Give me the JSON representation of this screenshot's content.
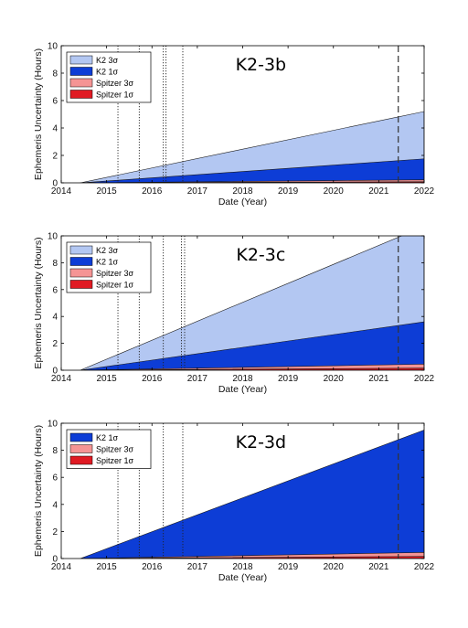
{
  "chart_data": [
    {
      "type": "area",
      "title": "K2-3b",
      "xlabel": "Date (Year)",
      "ylabel": "Ephemeris Uncertainty (Hours)",
      "xlim": [
        2014,
        2022
      ],
      "ylim": [
        0,
        10
      ],
      "xticks": [
        2014,
        2015,
        2016,
        2017,
        2018,
        2019,
        2020,
        2021,
        2022
      ],
      "yticks": [
        0,
        2,
        4,
        6,
        8,
        10
      ],
      "legend_position": "top-left",
      "start_year": 2014.42,
      "series": [
        {
          "name": "K2 3σ",
          "color": "#b3c7f2",
          "x": [
            2014.42,
            2022
          ],
          "values": [
            0,
            5.2
          ]
        },
        {
          "name": "K2 1σ",
          "color": "#0d3dd6",
          "x": [
            2014.42,
            2022
          ],
          "values": [
            0,
            1.75
          ]
        },
        {
          "name": "Spitzer 3σ",
          "color": "#f59494",
          "x": [
            2014.42,
            2022
          ],
          "values": [
            0,
            0.22
          ]
        },
        {
          "name": "Spitzer 1σ",
          "color": "#e01a23",
          "x": [
            2014.42,
            2022
          ],
          "values": [
            0,
            0.08
          ]
        }
      ],
      "dotted_lines": [
        2015.25,
        2015.72,
        2016.25,
        2016.31,
        2016.68
      ],
      "dashed_line": 2021.43
    },
    {
      "type": "area",
      "title": "K2-3c",
      "xlabel": "Date (Year)",
      "ylabel": "Ephemeris Uncertainty (Hours)",
      "xlim": [
        2014,
        2022
      ],
      "ylim": [
        0,
        10
      ],
      "xticks": [
        2014,
        2015,
        2016,
        2017,
        2018,
        2019,
        2020,
        2021,
        2022
      ],
      "yticks": [
        0,
        2,
        4,
        6,
        8,
        10
      ],
      "legend_position": "top-left",
      "start_year": 2014.42,
      "series": [
        {
          "name": "K2 3σ",
          "color": "#b3c7f2",
          "x": [
            2014.42,
            2022
          ],
          "values": [
            0,
            10.7
          ]
        },
        {
          "name": "K2 1σ",
          "color": "#0d3dd6",
          "x": [
            2014.42,
            2022
          ],
          "values": [
            0,
            3.6
          ]
        },
        {
          "name": "Spitzer 3σ",
          "color": "#f59494",
          "x": [
            2014.42,
            2022
          ],
          "values": [
            0,
            0.45
          ]
        },
        {
          "name": "Spitzer 1σ",
          "color": "#e01a23",
          "x": [
            2014.42,
            2022
          ],
          "values": [
            0,
            0.16
          ]
        }
      ],
      "dotted_lines": [
        2015.25,
        2015.72,
        2016.25,
        2016.65,
        2016.72
      ],
      "dashed_line": 2021.43
    },
    {
      "type": "area",
      "title": "K2-3d",
      "xlabel": "Date (Year)",
      "ylabel": "Ephemeris Uncertainty (Hours)",
      "xlim": [
        2014,
        2022
      ],
      "ylim": [
        0,
        10
      ],
      "xticks": [
        2014,
        2015,
        2016,
        2017,
        2018,
        2019,
        2020,
        2021,
        2022
      ],
      "yticks": [
        0,
        2,
        4,
        6,
        8,
        10
      ],
      "legend_position": "top-left",
      "start_year": 2014.42,
      "series": [
        {
          "name": "K2 1σ",
          "color": "#0d3dd6",
          "x": [
            2014.42,
            2022
          ],
          "values": [
            0,
            9.5
          ]
        },
        {
          "name": "Spitzer 3σ",
          "color": "#f59494",
          "x": [
            2014.42,
            2022
          ],
          "values": [
            0,
            0.45
          ]
        },
        {
          "name": "Spitzer 1σ",
          "color": "#e01a23",
          "x": [
            2014.42,
            2022
          ],
          "values": [
            0,
            0.16
          ]
        }
      ],
      "dotted_lines": [
        2015.25,
        2015.72,
        2016.25,
        2016.68
      ],
      "dashed_line": 2021.43
    }
  ]
}
